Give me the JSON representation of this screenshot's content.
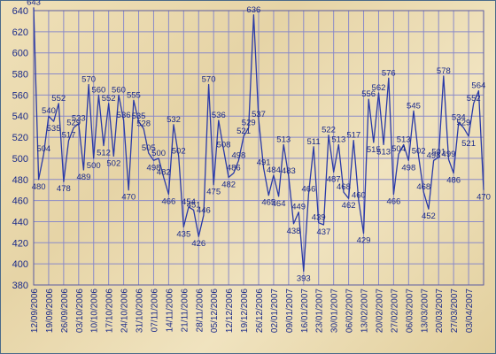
{
  "chart_data": {
    "type": "line",
    "title": "",
    "xlabel": "",
    "ylabel": "",
    "ylim": [
      380,
      640
    ],
    "yticks": [
      380,
      400,
      420,
      440,
      460,
      480,
      500,
      520,
      540,
      560,
      580,
      600,
      620,
      640
    ],
    "grid": true,
    "x_tick_labels": [
      "12/09/2006",
      "19/09/2006",
      "26/09/2006",
      "03/10/2006",
      "10/10/2006",
      "17/10/2006",
      "24/10/2006",
      "31/10/2006",
      "07/11/2006",
      "14/11/2006",
      "21/11/2006",
      "28/11/2006",
      "05/12/2006",
      "12/12/2006",
      "19/12/2006",
      "26/12/2006",
      "02/01/2007",
      "09/01/2007",
      "16/01/2007",
      "23/01/2007",
      "30/01/2007",
      "06/02/2007",
      "13/02/2007",
      "20/02/2007",
      "27/02/2007",
      "06/03/2007",
      "13/03/2007",
      "20/03/2007",
      "27/03/2007",
      "03/04/2007"
    ],
    "series": [
      {
        "color": "#2a3aa8",
        "values": [
          643,
          480,
          504,
          540,
          535,
          552,
          478,
          517,
          529,
          533,
          489,
          570,
          500,
          560,
          512,
          552,
          502,
          560,
          536,
          470,
          555,
          535,
          528,
          505,
          498,
          500,
          482,
          466,
          532,
          502,
          435,
          454,
          451,
          426,
          446,
          570,
          475,
          536,
          508,
          482,
          486,
          498,
          521,
          529,
          636,
          537,
          491,
          465,
          484,
          464,
          513,
          483,
          438,
          449,
          393,
          466,
          511,
          439,
          437,
          522,
          487,
          513,
          468,
          462,
          517,
          460,
          429,
          556,
          515,
          562,
          513,
          576,
          466,
          504,
          513,
          498,
          545,
          502,
          468,
          452,
          498,
          501,
          578,
          499,
          486,
          534,
          529,
          521,
          552,
          564,
          470
        ]
      }
    ]
  }
}
